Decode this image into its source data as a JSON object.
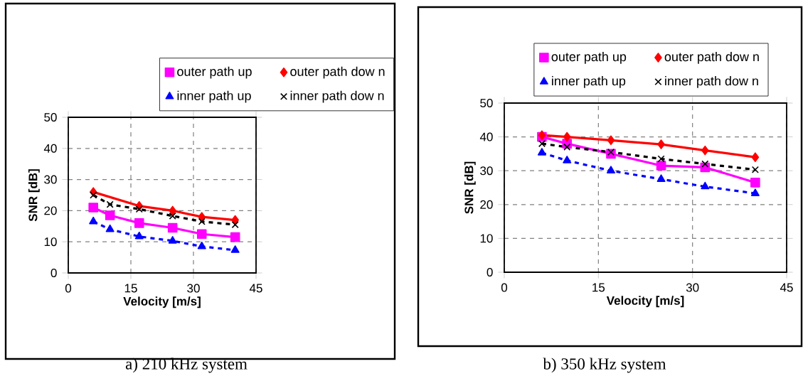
{
  "chart_data": [
    {
      "type": "line",
      "xlabel": "Velocity [m/s]",
      "ylabel": "SNR [dB]",
      "x": [
        6,
        10,
        17,
        25,
        32,
        40
      ],
      "xlim": [
        0,
        45
      ],
      "xticks": [
        0,
        15,
        30,
        45
      ],
      "ylim": [
        0,
        50
      ],
      "yticks": [
        0,
        10,
        20,
        30,
        40,
        50
      ],
      "grid": true,
      "legend": "top",
      "series": [
        {
          "name": "outer path up",
          "color": "#ff00ff",
          "marker": "square",
          "line_style": "solid",
          "values": [
            21,
            18.5,
            16,
            14.5,
            12.5,
            11.5
          ]
        },
        {
          "name": "outer path dow n",
          "color": "#ff0000",
          "marker": "diamond",
          "line_style": "solid",
          "x": [
            6,
            17,
            25,
            32,
            40
          ],
          "values": [
            26,
            21.5,
            20,
            18,
            17
          ]
        },
        {
          "name": "inner path up",
          "color": "#0000ff",
          "marker": "triangle",
          "line_style": "dashed",
          "values": [
            16.5,
            14,
            11.7,
            10.3,
            8.5,
            7.3
          ]
        },
        {
          "name": "inner path dow n",
          "color": "#000000",
          "marker": "cross",
          "line_style": "dashed",
          "values": [
            25,
            22,
            20.5,
            18.3,
            16.5,
            15.5
          ]
        }
      ],
      "annotations": [
        "a)  210 kHz system"
      ]
    },
    {
      "type": "line",
      "xlabel": "Velocity [m/s]",
      "ylabel": "SNR [dB]",
      "x": [
        6,
        10,
        17,
        25,
        32,
        40
      ],
      "xlim": [
        0,
        45
      ],
      "xticks": [
        0,
        15,
        30,
        45
      ],
      "ylim": [
        0,
        50
      ],
      "yticks": [
        0,
        10,
        20,
        30,
        40,
        50
      ],
      "grid": true,
      "legend": "top",
      "series": [
        {
          "name": "outer path up",
          "color": "#ff00ff",
          "marker": "square",
          "line_style": "solid",
          "values": [
            40,
            38,
            35,
            31.5,
            31,
            26.5
          ]
        },
        {
          "name": "outer path dow n",
          "color": "#ff0000",
          "marker": "diamond",
          "line_style": "solid",
          "values": [
            40.5,
            40,
            39,
            37.8,
            36,
            34
          ]
        },
        {
          "name": "inner path up",
          "color": "#0000ff",
          "marker": "triangle",
          "line_style": "dashed",
          "values": [
            35.3,
            33,
            30,
            27.5,
            25.3,
            23.3
          ]
        },
        {
          "name": "inner path dow n",
          "color": "#000000",
          "marker": "cross",
          "line_style": "dashed",
          "values": [
            38,
            37,
            35.5,
            33.5,
            32,
            30.3
          ]
        }
      ],
      "annotations": [
        "b)  350 kHz system"
      ]
    }
  ]
}
